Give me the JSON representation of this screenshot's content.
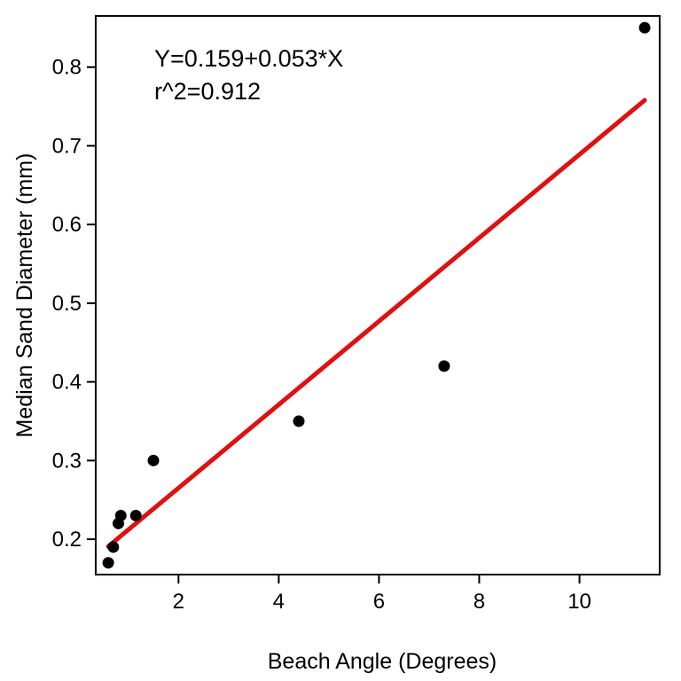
{
  "chart_data": {
    "type": "scatter",
    "xlabel": "Beach Angle (Degrees)",
    "ylabel": "Median Sand Diameter (mm)",
    "xlim": [
      0.35,
      11.6
    ],
    "ylim": [
      0.155,
      0.865
    ],
    "xticks": [
      2,
      4,
      6,
      8,
      10
    ],
    "yticks": [
      0.2,
      0.3,
      0.4,
      0.5,
      0.6,
      0.7,
      0.8
    ],
    "grid": false,
    "annotations": [
      "Y=0.159+0.053*X",
      "r^2=0.912"
    ],
    "points": [
      {
        "x": 0.6,
        "y": 0.17
      },
      {
        "x": 0.7,
        "y": 0.19
      },
      {
        "x": 0.8,
        "y": 0.22
      },
      {
        "x": 0.85,
        "y": 0.23
      },
      {
        "x": 1.15,
        "y": 0.23
      },
      {
        "x": 1.5,
        "y": 0.3
      },
      {
        "x": 4.4,
        "y": 0.35
      },
      {
        "x": 7.3,
        "y": 0.42
      },
      {
        "x": 11.3,
        "y": 0.85
      }
    ],
    "fit_line": {
      "intercept": 0.159,
      "slope": 0.053,
      "x_range": [
        0.6,
        11.3
      ],
      "color": "#e01010"
    },
    "point_color": "#000000"
  }
}
